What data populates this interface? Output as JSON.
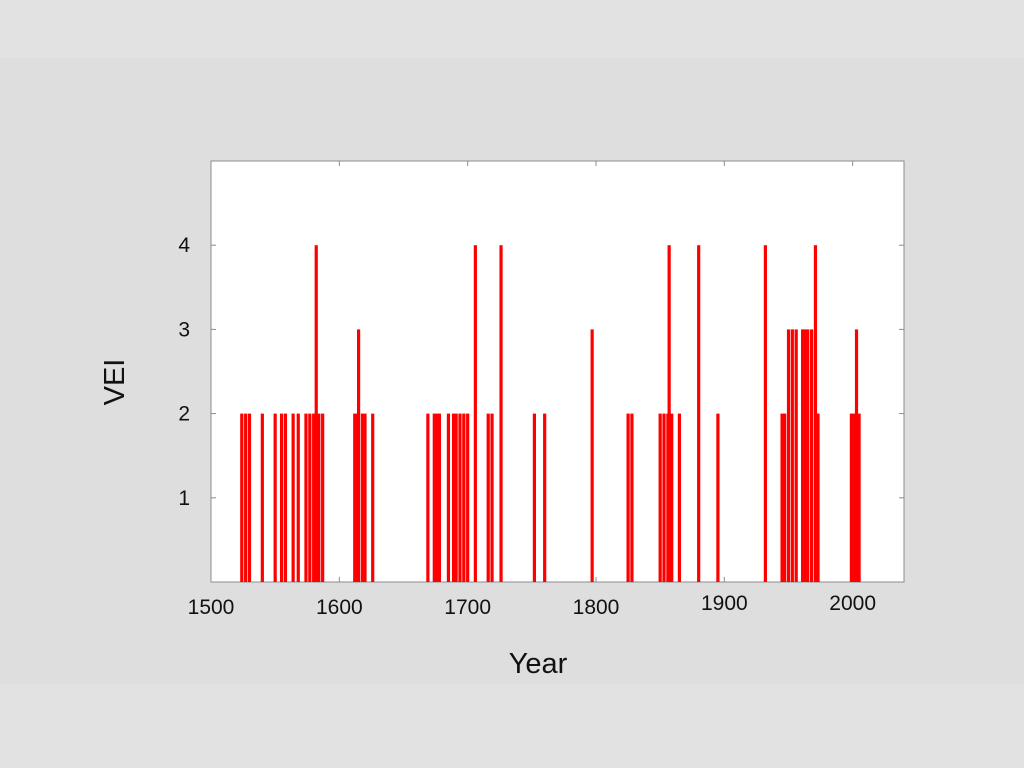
{
  "chart_data": {
    "type": "bar",
    "title": "",
    "xlabel": "Year",
    "ylabel": "VEI",
    "xlim": [
      1500,
      2040
    ],
    "ylim": [
      0,
      5
    ],
    "xticks": [
      1500,
      1600,
      1700,
      1800,
      1900,
      2000
    ],
    "yticks": [
      1,
      2,
      3,
      4
    ],
    "grid": false,
    "bar_color": "#ff0000",
    "series": [
      {
        "x": [
          1524,
          1527,
          1530,
          1540,
          1550,
          1555,
          1558,
          1564,
          1568,
          1574,
          1577,
          1580,
          1582,
          1584,
          1587,
          1612,
          1614,
          1615,
          1618,
          1620,
          1626,
          1669,
          1674,
          1676,
          1678,
          1685,
          1689,
          1691,
          1694,
          1697,
          1700,
          1706,
          1716,
          1719,
          1726,
          1752,
          1760,
          1797,
          1825,
          1828,
          1850,
          1853,
          1856,
          1857,
          1859,
          1865,
          1880,
          1895,
          1932,
          1945,
          1947,
          1950,
          1953,
          1956,
          1961,
          1963,
          1965,
          1968,
          1971,
          1973,
          1999,
          2001,
          2003,
          2005
        ],
        "values": [
          2,
          2,
          2,
          2,
          2,
          2,
          2,
          2,
          2,
          2,
          2,
          2,
          4,
          2,
          2,
          2,
          2,
          3,
          2,
          2,
          2,
          2,
          2,
          2,
          2,
          2,
          2,
          2,
          2,
          2,
          2,
          4,
          2,
          2,
          4,
          2,
          2,
          3,
          2,
          2,
          2,
          2,
          2,
          4,
          2,
          2,
          4,
          2,
          4,
          2,
          2,
          3,
          3,
          3,
          3,
          3,
          3,
          3,
          4,
          2,
          2,
          2,
          3,
          2
        ]
      }
    ]
  }
}
